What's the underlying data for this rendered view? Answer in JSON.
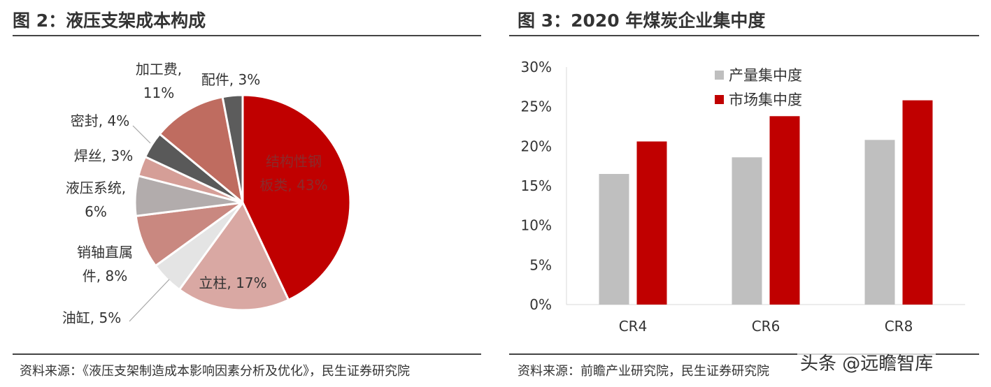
{
  "left_panel": {
    "title": "图 2：液压支架成本构成",
    "source": "资料来源：《液压支架制造成本影响因素分析及优化》，民生证券研究院"
  },
  "right_panel": {
    "title": "图 3：2020 年煤炭企业集中度",
    "source": "资料来源：前瞻产业研究院，民生证券研究院"
  },
  "watermark": "头条 @远瞻智库",
  "chart_data": [
    {
      "type": "pie",
      "title": "",
      "slices": [
        {
          "label_lines": [
            "结构性钢",
            "板类, 43%"
          ],
          "value": 43,
          "color": "#c00000"
        },
        {
          "label_lines": [
            "立柱, 17%"
          ],
          "value": 17,
          "color": "#d9a8a3"
        },
        {
          "label_lines": [
            "油缸, 5%"
          ],
          "value": 5,
          "color": "#e4e4e4"
        },
        {
          "label_lines": [
            "销轴直属",
            "件, 8%"
          ],
          "value": 8,
          "color": "#c98880"
        },
        {
          "label_lines": [
            "液压系统,",
            "6%"
          ],
          "value": 6,
          "color": "#b2acac"
        },
        {
          "label_lines": [
            "焊丝, 3%"
          ],
          "value": 3,
          "color": "#d59e97"
        },
        {
          "label_lines": [
            "密封, 4%"
          ],
          "value": 4,
          "color": "#595959"
        },
        {
          "label_lines": [
            "加工费,",
            "11%"
          ],
          "value": 11,
          "color": "#bf6c60"
        },
        {
          "label_lines": [
            "配件, 3%"
          ],
          "value": 3,
          "color": "#5c5c5c"
        }
      ]
    },
    {
      "type": "bar",
      "title": "",
      "categories": [
        "CR4",
        "CR6",
        "CR8"
      ],
      "series": [
        {
          "name": "产量集中度",
          "values": [
            16.5,
            18.6,
            20.8
          ],
          "color": "#bfbfbf"
        },
        {
          "name": "市场集中度",
          "values": [
            20.6,
            23.8,
            25.8
          ],
          "color": "#c00000"
        }
      ],
      "yticks": [
        "0%",
        "5%",
        "10%",
        "15%",
        "20%",
        "25%",
        "30%"
      ],
      "ylim": [
        0,
        30
      ],
      "legend_position": "top-center",
      "grid": false
    }
  ]
}
